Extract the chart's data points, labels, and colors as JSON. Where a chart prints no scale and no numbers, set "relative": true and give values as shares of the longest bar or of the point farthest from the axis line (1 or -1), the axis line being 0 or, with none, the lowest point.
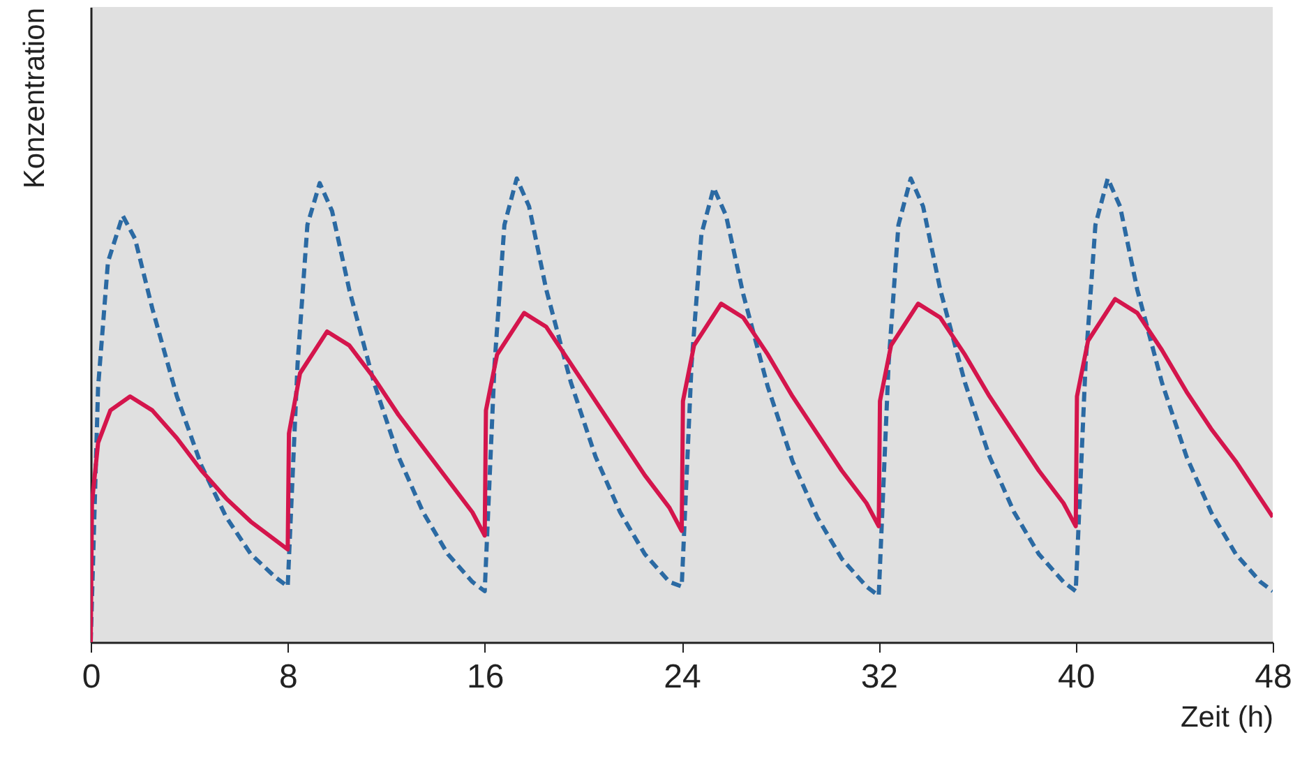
{
  "chart_data": {
    "type": "line",
    "xlabel": "Zeit (h)",
    "ylabel": "Konzentration",
    "relative": true,
    "xlim": [
      0,
      48
    ],
    "xticks": [
      0,
      8,
      16,
      24,
      32,
      40,
      48
    ],
    "series": [
      {
        "color": "#2b6aa3",
        "line_style": "dashed",
        "x": [
          0,
          0.3,
          0.7,
          1.3,
          1.8,
          2.5,
          3.5,
          4.5,
          5.5,
          6.5,
          7.5,
          8,
          8.4,
          8.8,
          9.3,
          9.8,
          10.5,
          11.5,
          12.5,
          13.5,
          14.5,
          15.5,
          16,
          16.4,
          16.8,
          17.3,
          17.8,
          18.5,
          19.5,
          20.5,
          21.5,
          22.5,
          23.5,
          24,
          24.4,
          24.8,
          25.3,
          25.8,
          26.5,
          27.5,
          28.5,
          29.5,
          30.5,
          31.5,
          32,
          32.4,
          32.8,
          33.3,
          33.8,
          34.5,
          35.5,
          36.5,
          37.5,
          38.5,
          39.5,
          40,
          40.4,
          40.8,
          41.3,
          41.8,
          42.5,
          43.5,
          44.5,
          45.5,
          46.5,
          47.5,
          48
        ],
        "values": [
          0,
          0.55,
          0.82,
          0.92,
          0.87,
          0.72,
          0.53,
          0.38,
          0.27,
          0.19,
          0.14,
          0.12,
          0.6,
          0.9,
          0.99,
          0.93,
          0.76,
          0.56,
          0.4,
          0.28,
          0.19,
          0.13,
          0.11,
          0.6,
          0.9,
          1.0,
          0.94,
          0.76,
          0.56,
          0.4,
          0.28,
          0.19,
          0.13,
          0.12,
          0.6,
          0.88,
          0.98,
          0.92,
          0.75,
          0.55,
          0.39,
          0.27,
          0.18,
          0.12,
          0.1,
          0.6,
          0.9,
          1.0,
          0.94,
          0.76,
          0.56,
          0.4,
          0.28,
          0.19,
          0.13,
          0.11,
          0.6,
          0.9,
          1.0,
          0.94,
          0.76,
          0.56,
          0.4,
          0.28,
          0.19,
          0.13,
          0.11
        ]
      },
      {
        "color": "#d4154c",
        "line_style": "solid",
        "x": [
          0,
          0.05,
          0.3,
          0.8,
          1.6,
          2.5,
          3.5,
          4.5,
          5.5,
          6.5,
          7.5,
          8,
          8.05,
          8.5,
          9.6,
          10.5,
          11.5,
          12.5,
          13.5,
          14.5,
          15.5,
          16,
          16.05,
          16.5,
          17.6,
          18.5,
          19.5,
          20.5,
          21.5,
          22.5,
          23.5,
          24,
          24.05,
          24.5,
          25.6,
          26.5,
          27.5,
          28.5,
          29.5,
          30.5,
          31.5,
          32,
          32.05,
          32.5,
          33.6,
          34.5,
          35.5,
          36.5,
          37.5,
          38.5,
          39.5,
          40,
          40.05,
          40.5,
          41.6,
          42.5,
          43.5,
          44.5,
          45.5,
          46.5,
          47.5,
          48
        ],
        "values": [
          0,
          0.3,
          0.43,
          0.5,
          0.53,
          0.5,
          0.44,
          0.37,
          0.31,
          0.26,
          0.22,
          0.2,
          0.45,
          0.58,
          0.67,
          0.64,
          0.57,
          0.49,
          0.42,
          0.35,
          0.28,
          0.23,
          0.5,
          0.62,
          0.71,
          0.68,
          0.6,
          0.52,
          0.44,
          0.36,
          0.29,
          0.24,
          0.52,
          0.64,
          0.73,
          0.7,
          0.62,
          0.53,
          0.45,
          0.37,
          0.3,
          0.25,
          0.52,
          0.64,
          0.73,
          0.7,
          0.62,
          0.53,
          0.45,
          0.37,
          0.3,
          0.25,
          0.53,
          0.65,
          0.74,
          0.71,
          0.63,
          0.54,
          0.46,
          0.39,
          0.31,
          0.27
        ]
      }
    ]
  }
}
